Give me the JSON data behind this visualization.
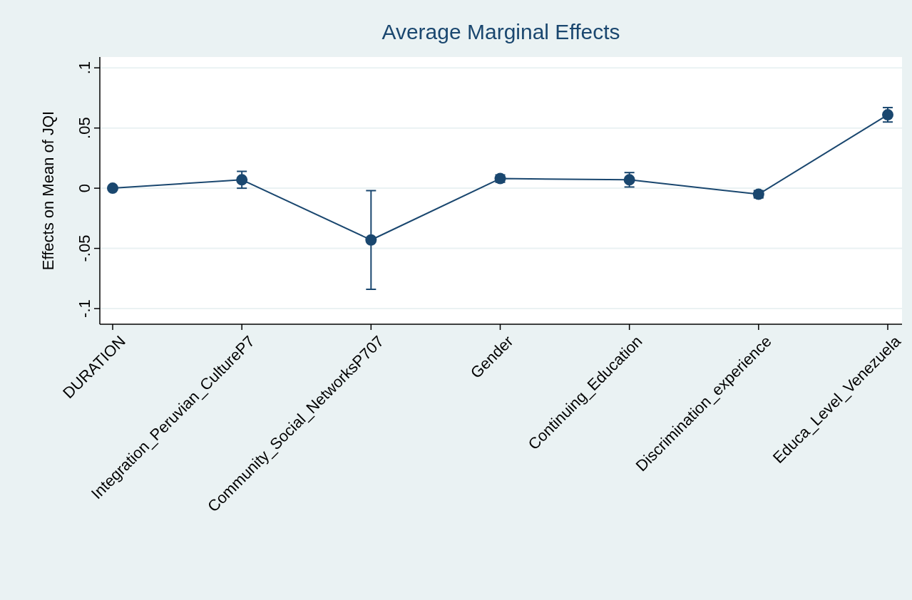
{
  "chart_data": {
    "type": "line",
    "title": "Average Marginal Effects",
    "ylabel": "Effects on Mean of JQI",
    "categories": [
      "DURATION",
      "Integration_Peruvian_CultureP7",
      "Community_Social_NetworksP707",
      "Gender",
      "Continuing_Education",
      "Discrimination_experience",
      "Educa_Level_Venezuela"
    ],
    "series": [
      {
        "color": "#1a476f",
        "values": [
          0,
          0.007,
          -0.043,
          0.008,
          0.007,
          -0.005,
          0.061
        ],
        "errors": [
          0.001,
          0.007,
          0.041,
          0.003,
          0.006,
          0.003,
          0.006
        ]
      }
    ],
    "ylim": [
      -0.113,
      0.109
    ],
    "yticks": [
      {
        "value": -0.1,
        "label": "-.1"
      },
      {
        "value": -0.05,
        "label": "-.05"
      },
      0,
      {
        "value": 0.05,
        "label": ".05"
      },
      {
        "value": 0.1,
        "label": ".1"
      }
    ],
    "grid": "y",
    "marker": "circle",
    "line_style": "solid"
  }
}
